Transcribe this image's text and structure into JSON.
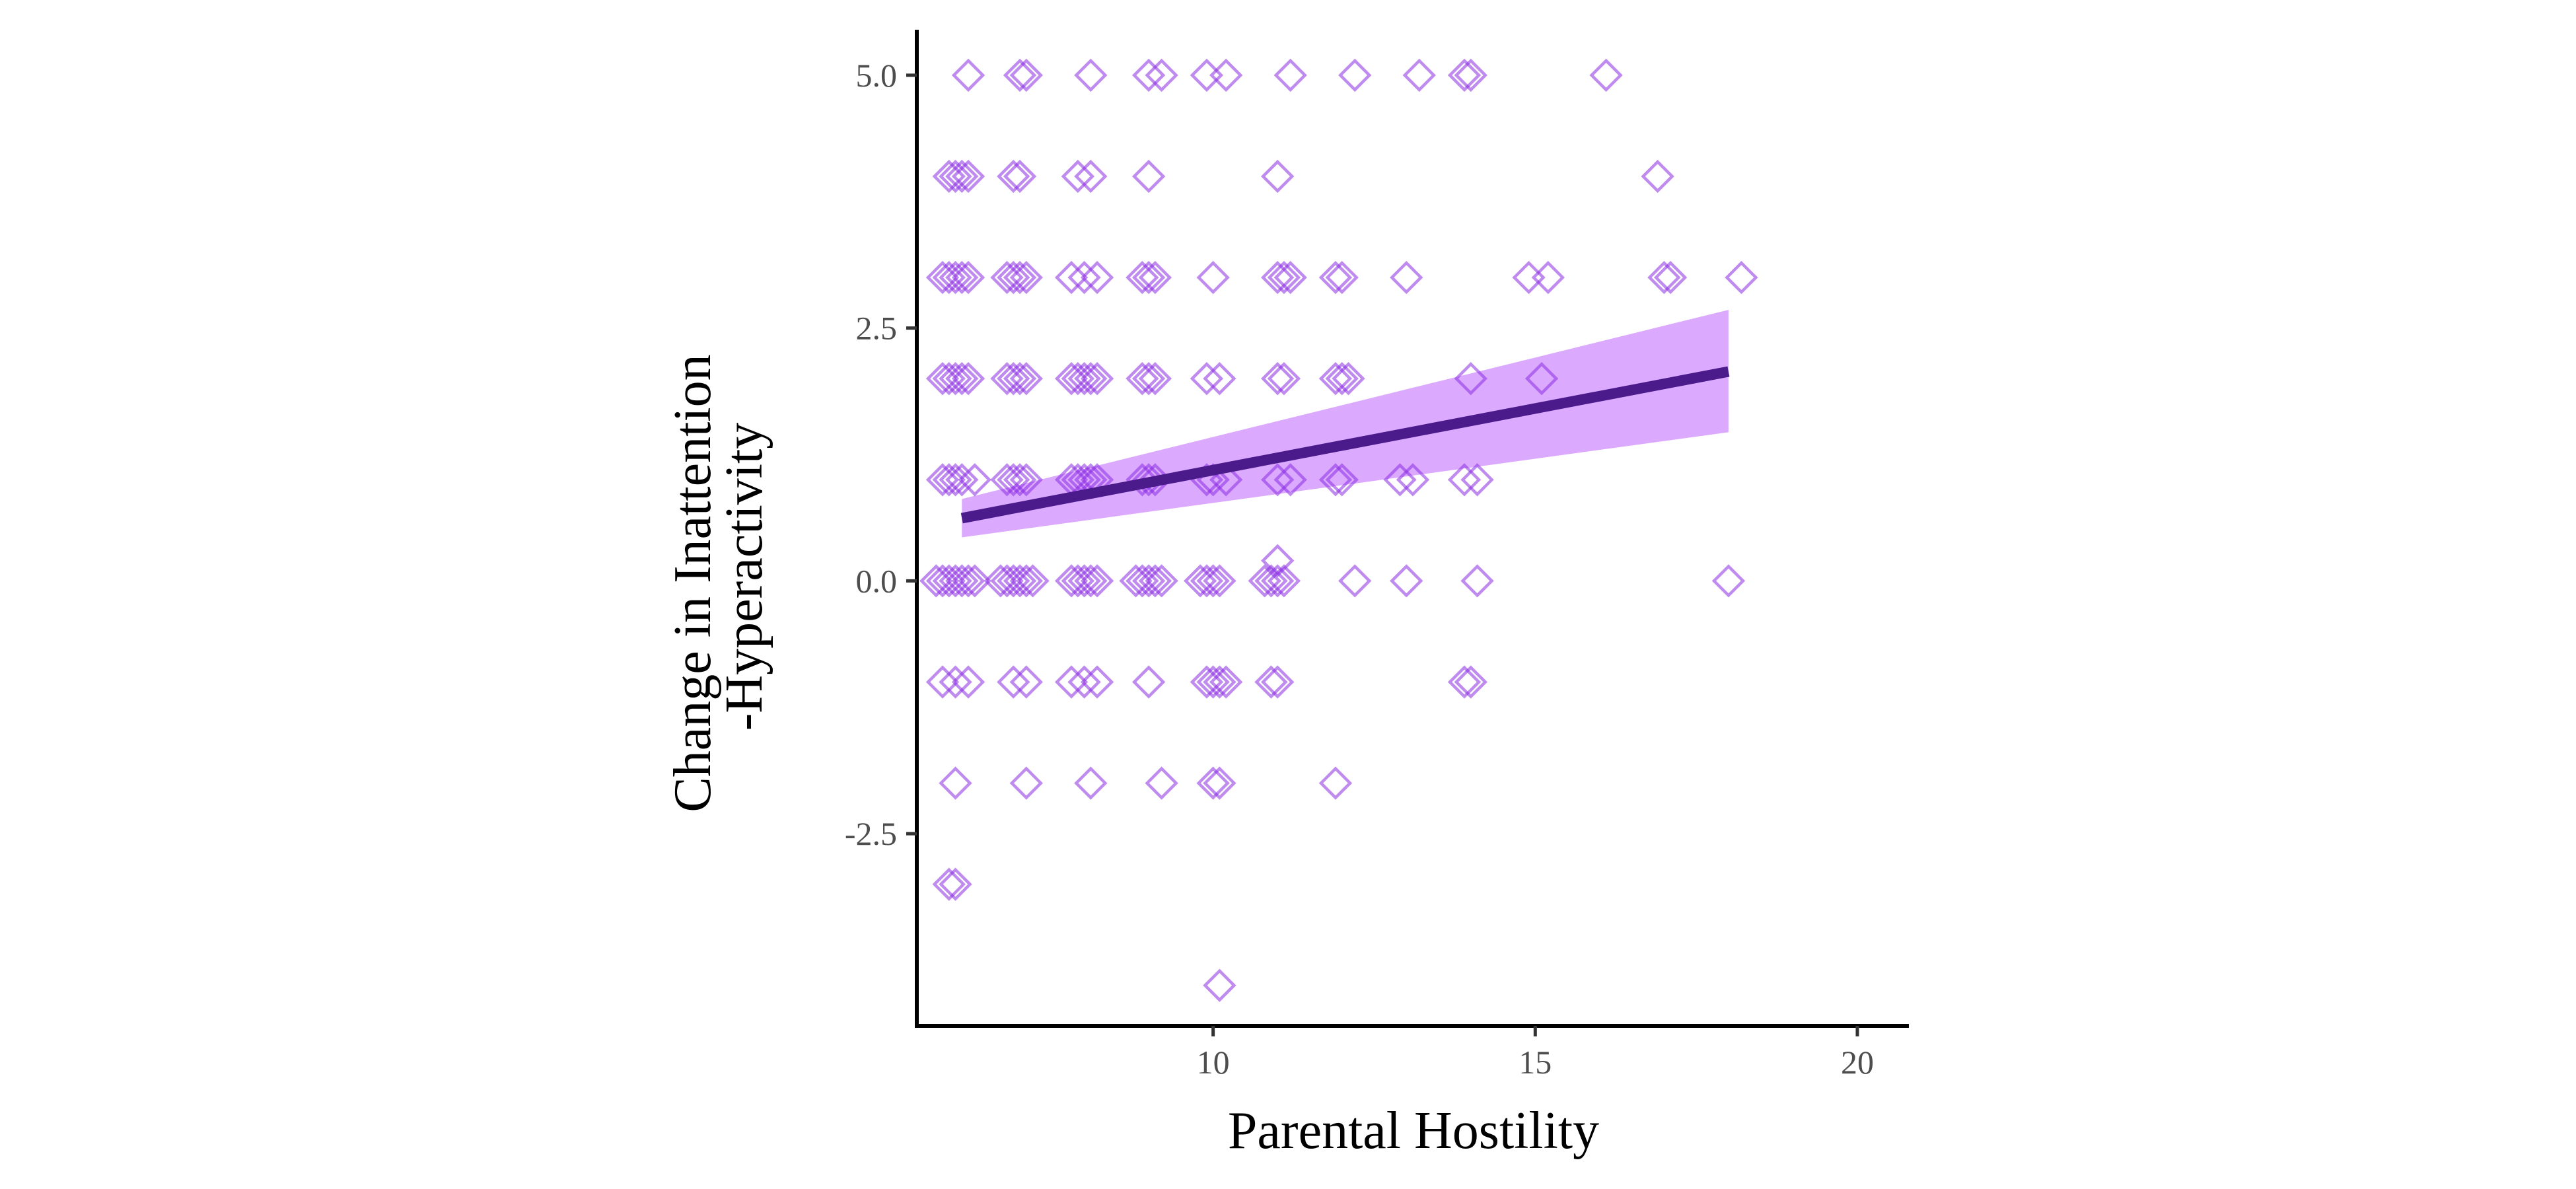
{
  "chart_data": {
    "type": "scatter",
    "title": "",
    "xlabel": "Parental Hostility",
    "ylabel_lines": [
      "Change in Inattention",
      "-Hyperactivity"
    ],
    "xlim": [
      5.4,
      20.8
    ],
    "ylim": [
      -4.4,
      5.45
    ],
    "x_ticks": [
      10,
      15,
      20
    ],
    "x_tick_labels": [
      "10",
      "15",
      "20"
    ],
    "y_ticks": [
      5,
      2.5,
      0,
      -2.5
    ],
    "y_tick_labels": [
      "5.0",
      "2.5",
      "0.0",
      "-2.5"
    ],
    "grid": false,
    "legend": "none",
    "colors": {
      "points": "#8a2be2",
      "fit_line": "#4b1b8c",
      "confidence_band": "#c77dff",
      "axis": "#000000",
      "tick_label": "#4d4d4d"
    },
    "point_marker": "open-diamond",
    "points": [
      [
        6.2,
        5
      ],
      [
        7,
        5
      ],
      [
        7.1,
        5
      ],
      [
        8.1,
        5
      ],
      [
        9,
        5
      ],
      [
        9.2,
        5
      ],
      [
        9.9,
        5
      ],
      [
        10.2,
        5
      ],
      [
        11.2,
        5
      ],
      [
        12.2,
        5
      ],
      [
        13.2,
        5
      ],
      [
        13.9,
        5
      ],
      [
        14,
        5
      ],
      [
        16.1,
        5
      ],
      [
        5.9,
        4
      ],
      [
        6,
        4
      ],
      [
        6.1,
        4
      ],
      [
        6.2,
        4
      ],
      [
        6.9,
        4
      ],
      [
        7,
        4
      ],
      [
        7.9,
        4
      ],
      [
        8.1,
        4
      ],
      [
        9,
        4
      ],
      [
        11,
        4
      ],
      [
        16.9,
        4
      ],
      [
        5.8,
        3
      ],
      [
        5.9,
        3
      ],
      [
        6,
        3
      ],
      [
        6.1,
        3
      ],
      [
        6.2,
        3
      ],
      [
        6.8,
        3
      ],
      [
        6.9,
        3
      ],
      [
        7,
        3
      ],
      [
        7.1,
        3
      ],
      [
        7.8,
        3
      ],
      [
        8,
        3
      ],
      [
        8.2,
        3
      ],
      [
        8.9,
        3
      ],
      [
        9,
        3
      ],
      [
        9.1,
        3
      ],
      [
        10,
        3
      ],
      [
        11,
        3
      ],
      [
        11.1,
        3
      ],
      [
        11.2,
        3
      ],
      [
        11.9,
        3
      ],
      [
        12,
        3
      ],
      [
        13,
        3
      ],
      [
        14.9,
        3
      ],
      [
        15.2,
        3
      ],
      [
        17,
        3
      ],
      [
        17.1,
        3
      ],
      [
        18.2,
        3
      ],
      [
        5.8,
        2
      ],
      [
        5.9,
        2
      ],
      [
        6,
        2
      ],
      [
        6.1,
        2
      ],
      [
        6.2,
        2
      ],
      [
        6.8,
        2
      ],
      [
        6.9,
        2
      ],
      [
        7,
        2
      ],
      [
        7.1,
        2
      ],
      [
        7.8,
        2
      ],
      [
        7.9,
        2
      ],
      [
        8,
        2
      ],
      [
        8.1,
        2
      ],
      [
        8.2,
        2
      ],
      [
        8.9,
        2
      ],
      [
        9,
        2
      ],
      [
        9.1,
        2
      ],
      [
        9.9,
        2
      ],
      [
        10.1,
        2
      ],
      [
        11,
        2
      ],
      [
        11.1,
        2
      ],
      [
        11.9,
        2
      ],
      [
        12,
        2
      ],
      [
        12.1,
        2
      ],
      [
        14,
        2
      ],
      [
        15.1,
        2
      ],
      [
        5.8,
        1
      ],
      [
        5.9,
        1
      ],
      [
        6,
        1
      ],
      [
        6.1,
        1
      ],
      [
        6.3,
        1
      ],
      [
        6.8,
        1
      ],
      [
        6.9,
        1
      ],
      [
        7,
        1
      ],
      [
        7.1,
        1
      ],
      [
        7.8,
        1
      ],
      [
        7.9,
        1
      ],
      [
        8,
        1
      ],
      [
        8.1,
        1
      ],
      [
        8.2,
        1
      ],
      [
        8.9,
        1
      ],
      [
        9,
        1
      ],
      [
        9.1,
        1
      ],
      [
        9.9,
        1
      ],
      [
        10,
        1
      ],
      [
        10.2,
        1
      ],
      [
        11,
        1
      ],
      [
        11.2,
        1
      ],
      [
        11.9,
        1
      ],
      [
        12,
        1
      ],
      [
        12.9,
        1
      ],
      [
        13.1,
        1
      ],
      [
        13.9,
        1
      ],
      [
        14.1,
        1
      ],
      [
        11,
        0.2
      ],
      [
        5.7,
        0
      ],
      [
        5.8,
        0
      ],
      [
        5.9,
        0
      ],
      [
        6,
        0
      ],
      [
        6.1,
        0
      ],
      [
        6.2,
        0
      ],
      [
        6.3,
        0
      ],
      [
        6.7,
        0
      ],
      [
        6.8,
        0
      ],
      [
        6.9,
        0
      ],
      [
        7,
        0
      ],
      [
        7.1,
        0
      ],
      [
        7.2,
        0
      ],
      [
        7.8,
        0
      ],
      [
        7.9,
        0
      ],
      [
        8,
        0
      ],
      [
        8.1,
        0
      ],
      [
        8.2,
        0
      ],
      [
        8.8,
        0
      ],
      [
        8.9,
        0
      ],
      [
        9,
        0
      ],
      [
        9.1,
        0
      ],
      [
        9.2,
        0
      ],
      [
        9.8,
        0
      ],
      [
        9.9,
        0
      ],
      [
        10,
        0
      ],
      [
        10.1,
        0
      ],
      [
        10.8,
        0
      ],
      [
        10.9,
        0
      ],
      [
        11,
        0
      ],
      [
        11.1,
        0
      ],
      [
        12.2,
        0
      ],
      [
        13,
        0
      ],
      [
        14.1,
        0
      ],
      [
        18,
        0
      ],
      [
        5.8,
        -1
      ],
      [
        6,
        -1
      ],
      [
        6.2,
        -1
      ],
      [
        6.9,
        -1
      ],
      [
        7.1,
        -1
      ],
      [
        7.8,
        -1
      ],
      [
        8,
        -1
      ],
      [
        8.2,
        -1
      ],
      [
        9,
        -1
      ],
      [
        9.9,
        -1
      ],
      [
        10,
        -1
      ],
      [
        10.1,
        -1
      ],
      [
        10.2,
        -1
      ],
      [
        10.9,
        -1
      ],
      [
        11,
        -1
      ],
      [
        13.9,
        -1
      ],
      [
        14,
        -1
      ],
      [
        6,
        -2
      ],
      [
        7.1,
        -2
      ],
      [
        8.1,
        -2
      ],
      [
        9.2,
        -2
      ],
      [
        10,
        -2
      ],
      [
        10.1,
        -2
      ],
      [
        11.9,
        -2
      ],
      [
        5.9,
        -3
      ],
      [
        6,
        -3
      ],
      [
        10.1,
        -4
      ]
    ],
    "fit_line": {
      "x": [
        6.1,
        18.0
      ],
      "y": [
        0.62,
        2.07
      ]
    },
    "confidence_band": {
      "x": [
        6.1,
        18.0
      ],
      "lower": [
        0.43,
        1.47
      ],
      "upper": [
        0.81,
        2.68
      ]
    }
  }
}
